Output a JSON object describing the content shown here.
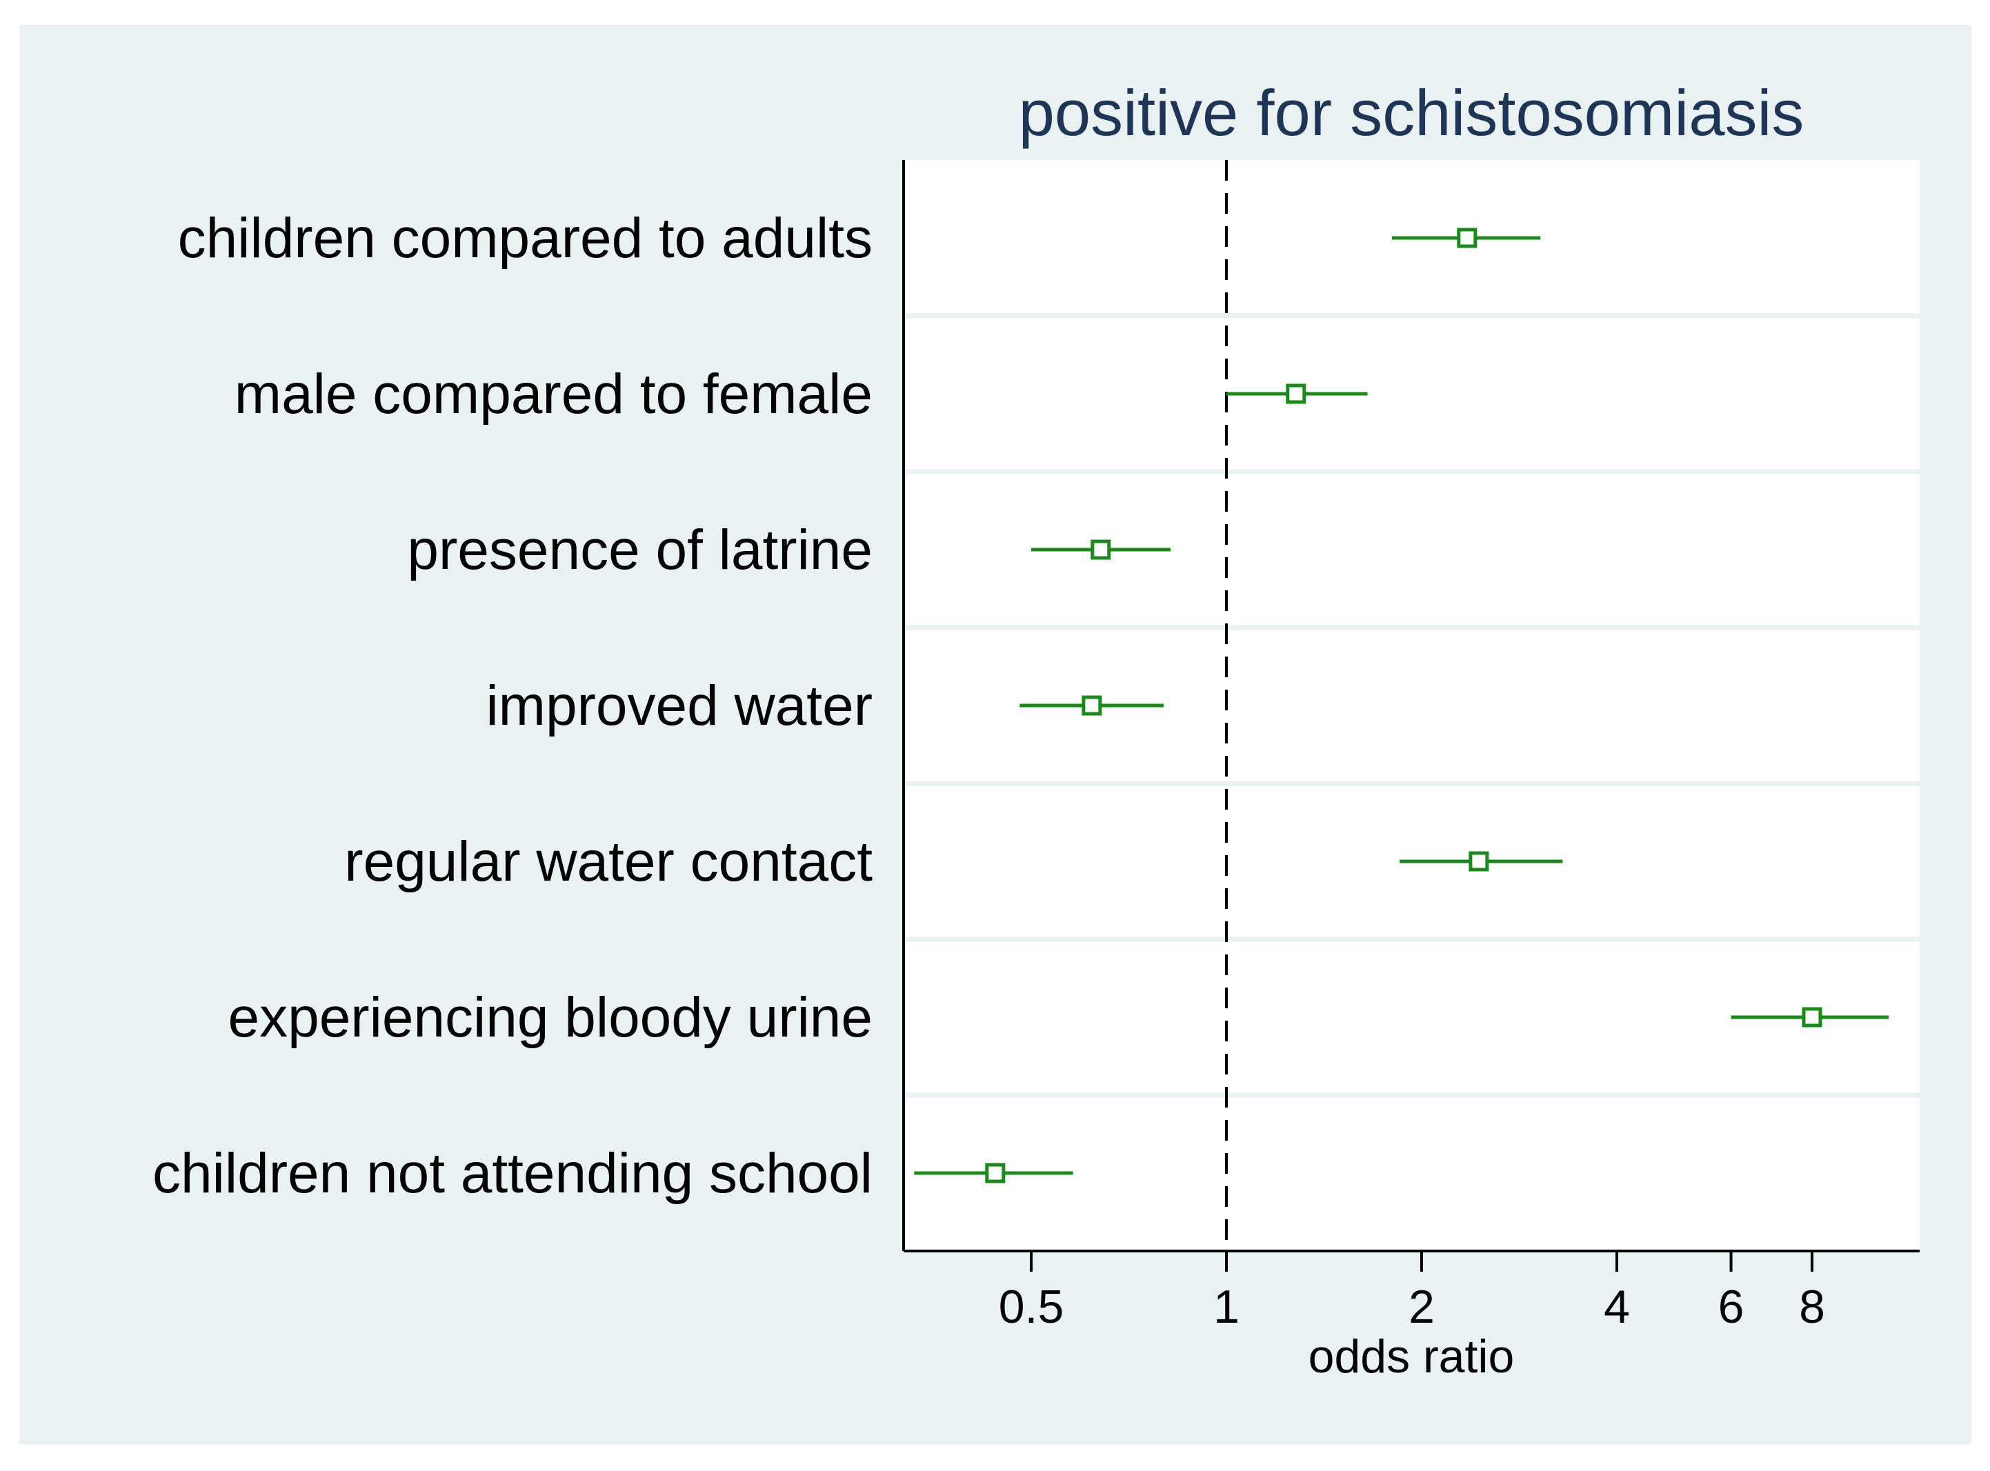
{
  "chart_data": {
    "type": "forest",
    "title": "positive for schistosomiasis",
    "xlabel": "odds ratio",
    "x_scale": "log",
    "xlim": [
      0.3,
      11
    ],
    "x_ticks": [
      {
        "value": 0.5,
        "label": "0.5"
      },
      {
        "value": 1,
        "label": "1"
      },
      {
        "value": 2,
        "label": "2"
      },
      {
        "value": 4,
        "label": "4"
      },
      {
        "value": 6,
        "label": "6"
      },
      {
        "value": 8,
        "label": "8"
      }
    ],
    "reference_line": 1,
    "rows": [
      {
        "label": "children compared to adults",
        "or": 2.35,
        "lower": 1.8,
        "upper": 3.05
      },
      {
        "label": "male compared to female",
        "or": 1.28,
        "lower": 1.0,
        "upper": 1.65
      },
      {
        "label": "presence of latrine",
        "or": 0.64,
        "lower": 0.5,
        "upper": 0.82
      },
      {
        "label": "improved water",
        "or": 0.62,
        "lower": 0.48,
        "upper": 0.8
      },
      {
        "label": "regular water contact",
        "or": 2.45,
        "lower": 1.85,
        "upper": 3.3
      },
      {
        "label": "experiencing bloody urine",
        "or": 8.0,
        "lower": 6.0,
        "upper": 10.5
      },
      {
        "label": "children not attending school",
        "or": 0.44,
        "lower": 0.33,
        "upper": 0.58
      }
    ],
    "grid": true,
    "legend": "none",
    "colors": {
      "outer_background": "#eaf1f3",
      "plot_background": "#ffffff",
      "marker": "#1a8a1a",
      "title": "#1d3557",
      "text": "#000000",
      "axis": "#000000"
    }
  }
}
